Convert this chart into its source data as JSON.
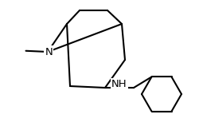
{
  "bg_color": "#ffffff",
  "line_color": "#000000",
  "lw": 1.5,
  "figsize": [
    2.5,
    1.58
  ],
  "dpi": 100,
  "N_label": "N",
  "NH_label": "NH",
  "Me_label": "·",
  "font_size": 9.5
}
